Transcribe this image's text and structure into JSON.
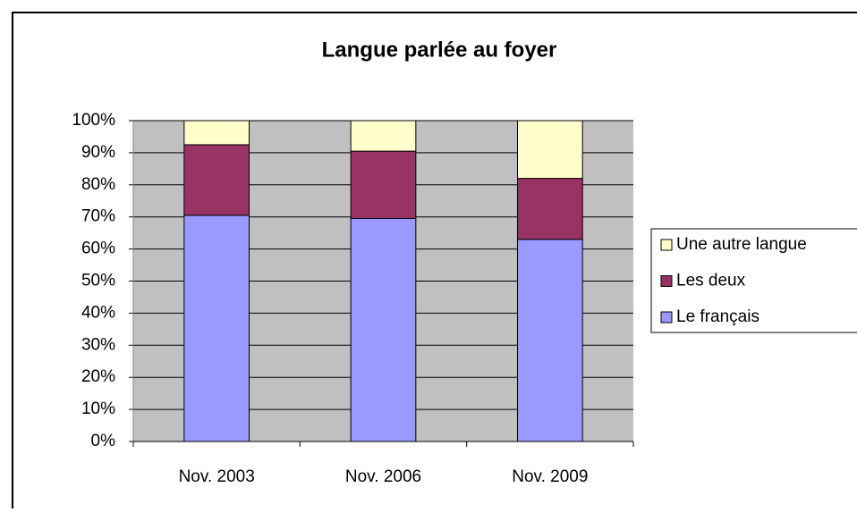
{
  "chart_data": {
    "type": "stacked_bar_100",
    "title": "Langue parlée au foyer",
    "categories": [
      "Nov. 2003",
      "Nov. 2006",
      "Nov. 2009"
    ],
    "series": [
      {
        "name": "Le français",
        "color": "#9999ff",
        "values": [
          70.5,
          69.5,
          63
        ]
      },
      {
        "name": "Les deux",
        "color": "#993366",
        "values": [
          22,
          21,
          19
        ]
      },
      {
        "name": "Une autre langue",
        "color": "#ffffcc",
        "values": [
          7.5,
          9.5,
          18
        ]
      }
    ],
    "ylim": [
      0,
      100
    ],
    "yticks": [
      {
        "value": 0,
        "label": "0%"
      },
      {
        "value": 10,
        "label": "10%"
      },
      {
        "value": 20,
        "label": "20%"
      },
      {
        "value": 30,
        "label": "30%"
      },
      {
        "value": 40,
        "label": "40%"
      },
      {
        "value": 50,
        "label": "50%"
      },
      {
        "value": 60,
        "label": "60%"
      },
      {
        "value": 70,
        "label": "70%"
      },
      {
        "value": 80,
        "label": "80%"
      },
      {
        "value": 90,
        "label": "90%"
      },
      {
        "value": 100,
        "label": "100%"
      }
    ],
    "grid": true,
    "plot_background": "#c0c0c0",
    "legend": "right"
  }
}
